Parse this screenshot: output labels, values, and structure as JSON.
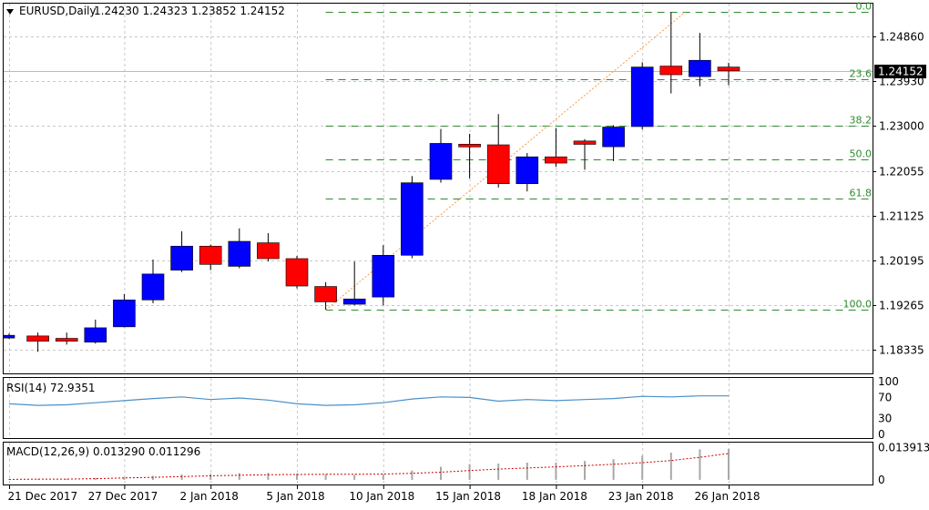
{
  "colors": {
    "bull": "#0000ff",
    "bear": "#ff0000",
    "wick": "#000000",
    "fib_line": "#2e8b2e",
    "fib_text": "#2e8b2e",
    "trend_line": "#ff9a3c",
    "rsi_line": "#4a90c8",
    "macd_signal": "#cc0000",
    "macd_hist": "#a8a8a8",
    "grid": "#c8c8c8",
    "price_tag_bg": "#000000",
    "price_tag_fg": "#ffffff"
  },
  "header": {
    "symbol_label": "EURUSD,Daily",
    "ohlc_text": "1.24230 1.24323 1.23852 1.24152",
    "menu_icon": "triangle-down-icon"
  },
  "chart_data": [
    {
      "type": "candlestick",
      "title": "EURUSD,Daily",
      "last_price": "1.24152",
      "ylim": [
        1.1785,
        1.2555
      ],
      "y_ticks": [
        "1.24860",
        "1.23930",
        "1.23000",
        "1.22055",
        "1.21125",
        "1.20195",
        "1.19265",
        "1.18335"
      ],
      "x_tick_labels": [
        {
          "label": "21 Dec 2017",
          "index": 0
        },
        {
          "label": "27 Dec 2017",
          "index": 4
        },
        {
          "label": "2 Jan 2018",
          "index": 7
        },
        {
          "label": "5 Jan 2018",
          "index": 10
        },
        {
          "label": "10 Jan 2018",
          "index": 13
        },
        {
          "label": "15 Jan 2018",
          "index": 16
        },
        {
          "label": "18 Jan 2018",
          "index": 19
        },
        {
          "label": "23 Jan 2018",
          "index": 22
        },
        {
          "label": "26 Jan 2018",
          "index": 25
        }
      ],
      "candles": [
        {
          "o": 1.186,
          "h": 1.1868,
          "l": 1.1857,
          "c": 1.1863
        },
        {
          "o": 1.1863,
          "h": 1.187,
          "l": 1.183,
          "c": 1.1852
        },
        {
          "o": 1.1858,
          "h": 1.187,
          "l": 1.1845,
          "c": 1.1852
        },
        {
          "o": 1.185,
          "h": 1.1897,
          "l": 1.1847,
          "c": 1.188
        },
        {
          "o": 1.1882,
          "h": 1.195,
          "l": 1.1881,
          "c": 1.1938
        },
        {
          "o": 1.1938,
          "h": 1.2022,
          "l": 1.1931,
          "c": 1.1992
        },
        {
          "o": 1.2,
          "h": 1.2081,
          "l": 1.1996,
          "c": 1.205
        },
        {
          "o": 1.205,
          "h": 1.2053,
          "l": 1.2,
          "c": 1.2012
        },
        {
          "o": 1.2008,
          "h": 1.2087,
          "l": 1.2004,
          "c": 1.206
        },
        {
          "o": 1.2057,
          "h": 1.2077,
          "l": 1.2018,
          "c": 1.2024
        },
        {
          "o": 1.2024,
          "h": 1.203,
          "l": 1.1962,
          "c": 1.1967
        },
        {
          "o": 1.1966,
          "h": 1.1975,
          "l": 1.1918,
          "c": 1.1934
        },
        {
          "o": 1.1929,
          "h": 1.2018,
          "l": 1.1927,
          "c": 1.194
        },
        {
          "o": 1.1944,
          "h": 1.2052,
          "l": 1.1927,
          "c": 1.2031
        },
        {
          "o": 1.2031,
          "h": 1.2196,
          "l": 1.2025,
          "c": 1.2182
        },
        {
          "o": 1.2189,
          "h": 1.2294,
          "l": 1.2182,
          "c": 1.2264
        },
        {
          "o": 1.226,
          "h": 1.2284,
          "l": 1.2191,
          "c": 1.2259
        },
        {
          "o": 1.2261,
          "h": 1.2325,
          "l": 1.2172,
          "c": 1.218
        },
        {
          "o": 1.218,
          "h": 1.2244,
          "l": 1.2164,
          "c": 1.2236
        },
        {
          "o": 1.2236,
          "h": 1.2296,
          "l": 1.2215,
          "c": 1.2223
        },
        {
          "o": 1.2269,
          "h": 1.2273,
          "l": 1.2209,
          "c": 1.2262
        },
        {
          "o": 1.2257,
          "h": 1.2302,
          "l": 1.2227,
          "c": 1.2298
        },
        {
          "o": 1.2299,
          "h": 1.2433,
          "l": 1.2293,
          "c": 1.2423
        },
        {
          "o": 1.2425,
          "h": 1.2537,
          "l": 1.2368,
          "c": 1.2407
        },
        {
          "o": 1.2403,
          "h": 1.2494,
          "l": 1.2383,
          "c": 1.2437
        },
        {
          "o": 1.2423,
          "h": 1.2432,
          "l": 1.2385,
          "c": 1.2415
        }
      ],
      "fibonacci": {
        "start_index": 11,
        "end_index": 23.5,
        "levels": [
          {
            "label": "0.0",
            "price": 1.2538
          },
          {
            "label": "23.6",
            "price": 1.2397
          },
          {
            "label": "38.2",
            "price": 1.2301
          },
          {
            "label": "50.0",
            "price": 1.223
          },
          {
            "label": "61.8",
            "price": 1.215
          },
          {
            "label": "100.0",
            "price": 1.1917
          }
        ]
      },
      "trend_line": {
        "from": {
          "index": 11,
          "price": 1.1917
        },
        "to": {
          "index": 23.5,
          "price": 1.2538
        }
      }
    },
    {
      "type": "line",
      "title": "RSI(14) 72.9351",
      "ylim": [
        0,
        100
      ],
      "y_ticks": [
        "100",
        "70",
        "30",
        "0"
      ],
      "values": [
        58,
        55,
        56,
        60,
        64,
        68,
        71,
        66,
        69,
        65,
        58,
        55,
        56,
        60,
        67,
        71,
        70,
        63,
        66,
        64,
        66,
        68,
        72,
        71,
        73,
        72.9
      ]
    },
    {
      "type": "bar",
      "title": "MACD(12,26,9) 0.013290 0.011296",
      "ylim": [
        -0.002,
        0.016
      ],
      "y_ticks": [
        "0.013913",
        "0"
      ],
      "histogram": [
        0.0003,
        0.0003,
        0.0004,
        0.0008,
        0.0012,
        0.0017,
        0.0023,
        0.0026,
        0.0029,
        0.003,
        0.0027,
        0.0024,
        0.0022,
        0.0025,
        0.004,
        0.0056,
        0.0068,
        0.007,
        0.0074,
        0.0074,
        0.0081,
        0.0089,
        0.0104,
        0.0117,
        0.0131,
        0.0133
      ],
      "signal": [
        0.0002,
        0.0003,
        0.0003,
        0.0005,
        0.0008,
        0.0011,
        0.0014,
        0.0017,
        0.002,
        0.0022,
        0.0023,
        0.0024,
        0.0024,
        0.0025,
        0.0028,
        0.0033,
        0.004,
        0.0046,
        0.0051,
        0.0056,
        0.0061,
        0.0067,
        0.0074,
        0.0083,
        0.0097,
        0.0113
      ]
    }
  ]
}
